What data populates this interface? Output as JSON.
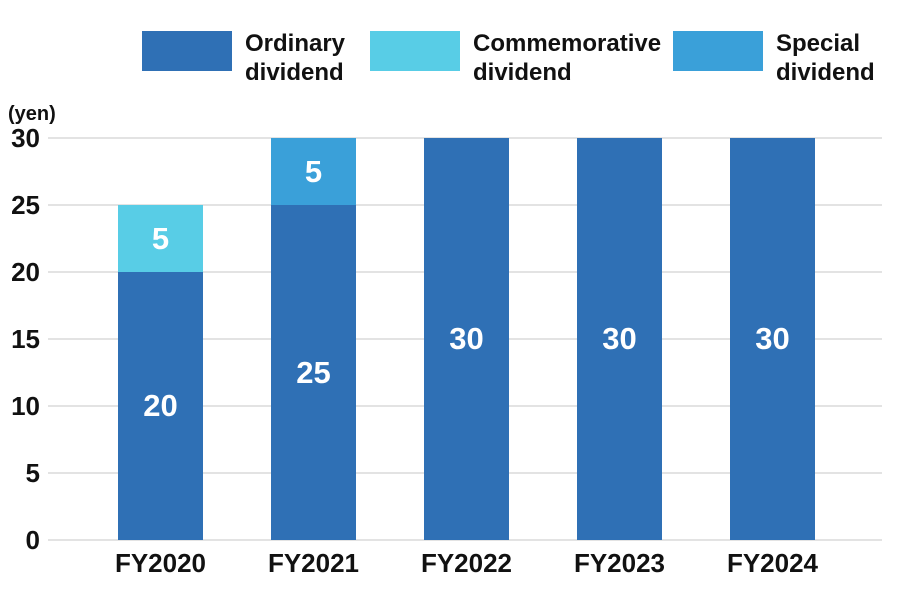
{
  "chart_data": {
    "type": "bar",
    "stacked": true,
    "title": "",
    "unit_label": "(yen)",
    "xlabel": "",
    "ylabel": "yen",
    "ylim": [
      0,
      30
    ],
    "yticks": [
      0,
      5,
      10,
      15,
      20,
      25,
      30
    ],
    "grid": true,
    "legend_position": "top",
    "segment_labels_shown": true,
    "categories": [
      "FY2020",
      "FY2021",
      "FY2022",
      "FY2023",
      "FY2024"
    ],
    "series": [
      {
        "name": "Ordinary dividend",
        "color": "#2f70b5",
        "values": [
          20,
          25,
          30,
          30,
          30
        ]
      },
      {
        "name": "Commemorative dividend",
        "color": "#58cde6",
        "values": [
          5,
          0,
          0,
          0,
          0
        ]
      },
      {
        "name": "Special dividend",
        "color": "#3aa0d9",
        "values": [
          0,
          5,
          0,
          0,
          0
        ]
      }
    ]
  },
  "legend": {
    "items": [
      {
        "line1": "Ordinary",
        "line2": "dividend",
        "color": "#2f70b5"
      },
      {
        "line1": "Commemorative",
        "line2": "dividend",
        "color": "#58cde6"
      },
      {
        "line1": "Special",
        "line2": "dividend",
        "color": "#3aa0d9"
      }
    ]
  },
  "colors": {
    "grid": "#e3e3e3",
    "text": "#111111",
    "bar_label": "#ffffff",
    "background": "#ffffff"
  }
}
